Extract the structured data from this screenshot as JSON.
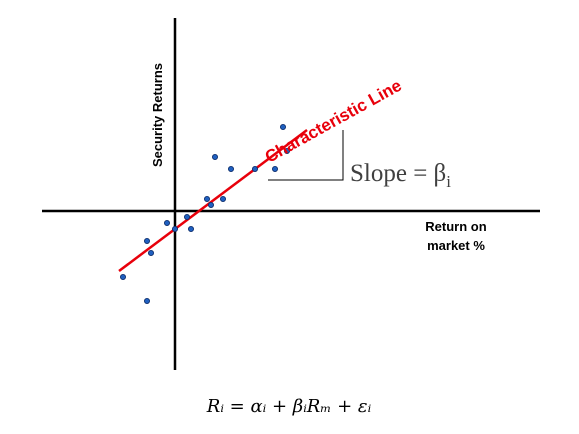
{
  "diagram": {
    "y_axis_label": "Security Returns",
    "x_axis_label_line1": "Return on",
    "x_axis_label_line2": "market %",
    "line_label": "Characteristic Line",
    "slope_text": "Slope = β",
    "slope_subscript": "i",
    "equation": "Rᵢ = αᵢ + βᵢRₘ + εᵢ",
    "colors": {
      "axes": "#000000",
      "characteristic_line": "#e8000b",
      "points_fill": "#1f5fbf",
      "points_stroke": "#0b2a66"
    },
    "points": [
      [
        -0.13,
        -0.11
      ],
      [
        -0.07,
        -0.05
      ],
      [
        -0.07,
        -0.15
      ],
      [
        -0.06,
        -0.07
      ],
      [
        -0.02,
        -0.02
      ],
      [
        0.0,
        -0.03
      ],
      [
        0.03,
        -0.01
      ],
      [
        0.04,
        -0.03
      ],
      [
        0.08,
        0.02
      ],
      [
        0.09,
        0.01
      ],
      [
        0.12,
        0.02
      ],
      [
        0.1,
        0.09
      ],
      [
        0.14,
        0.07
      ],
      [
        0.2,
        0.07
      ],
      [
        0.25,
        0.07
      ],
      [
        0.27,
        0.14
      ],
      [
        0.28,
        0.1
      ]
    ],
    "characteristic_line": {
      "alpha": -0.03,
      "beta": 0.5,
      "x_start": -0.14,
      "x_end": 0.33
    }
  }
}
